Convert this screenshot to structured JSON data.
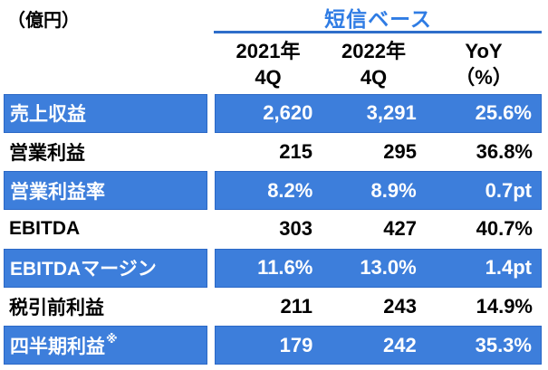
{
  "chart_data": {
    "type": "table",
    "title": "短信ベース",
    "unit_label": "（億円）",
    "columns": [
      {
        "line1": "2021年",
        "line2": "4Q"
      },
      {
        "line1": "2022年",
        "line2": "4Q"
      },
      {
        "line1": "YoY",
        "line2": "（%）"
      }
    ],
    "rows": [
      {
        "label": "売上収益",
        "values": [
          "2,620",
          "3,291",
          "25.6%"
        ],
        "highlight": true
      },
      {
        "label": "営業利益",
        "values": [
          "215",
          "295",
          "36.8%"
        ],
        "highlight": false
      },
      {
        "label": "営業利益率",
        "values": [
          "8.2%",
          "8.9%",
          "0.7pt"
        ],
        "highlight": true
      },
      {
        "label": "EBITDA",
        "values": [
          "303",
          "427",
          "40.7%"
        ],
        "highlight": false
      },
      {
        "label": "EBITDAマージン",
        "values": [
          "11.6%",
          "13.0%",
          "1.4pt"
        ],
        "highlight": true
      },
      {
        "label": "税引前利益",
        "values": [
          "211",
          "243",
          "14.9%"
        ],
        "highlight": false
      },
      {
        "label": "四半期利益",
        "note": "※",
        "values": [
          "179",
          "242",
          "35.3%"
        ],
        "highlight": true
      }
    ]
  },
  "colors": {
    "row_highlight_blue": "#3D7EDB",
    "row_border_blue": "#2B68C6",
    "title_blue": "#2F7CE4",
    "underline_blue": "#2E6DC9",
    "text_on_blue": "#FFFFFF",
    "text_black": "#000000"
  }
}
